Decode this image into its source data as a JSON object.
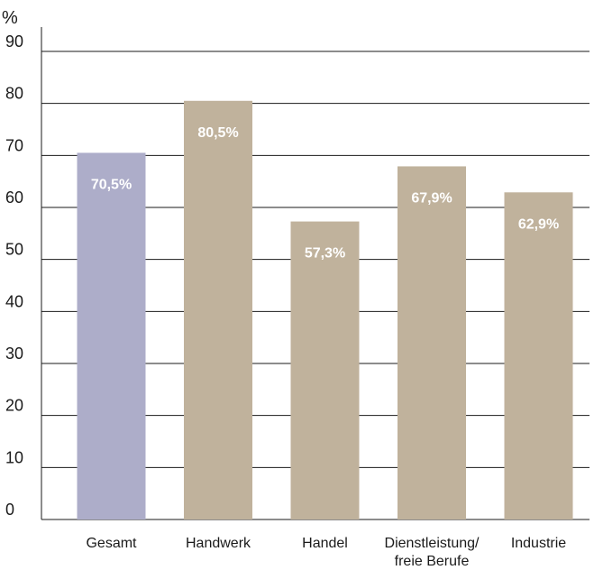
{
  "chart_data": {
    "type": "bar",
    "title": "",
    "xlabel": "",
    "ylabel": "%",
    "ylim": [
      0,
      90
    ],
    "yticks": [
      0,
      10,
      20,
      30,
      40,
      50,
      60,
      70,
      80,
      90
    ],
    "grid": true,
    "categories": [
      [
        "Gesamt"
      ],
      [
        "Handwerk"
      ],
      [
        "Handel"
      ],
      [
        "Dienstleistung/",
        "freie Berufe"
      ],
      [
        "Industrie"
      ]
    ],
    "values": [
      70.5,
      80.5,
      57.3,
      67.9,
      62.9
    ],
    "value_labels": [
      "70,5%",
      "80,5%",
      "57,3%",
      "67,9%",
      "62,9%"
    ],
    "colors": [
      "#adadc9",
      "#c0b29c",
      "#c0b29c",
      "#c0b29c",
      "#c0b29c"
    ]
  }
}
